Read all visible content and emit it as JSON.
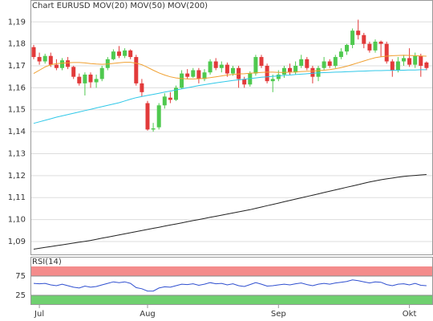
{
  "chart_data": [
    {
      "type": "candlestick",
      "title": "Chart EURUSD",
      "title_color": "#e04040",
      "categories": [
        null,
        "Jul",
        null,
        null,
        null,
        null,
        null,
        null,
        null,
        null,
        null,
        null,
        null,
        null,
        null,
        null,
        null,
        null,
        null,
        null,
        "Aug",
        null,
        null,
        null,
        null,
        null,
        null,
        null,
        null,
        null,
        null,
        null,
        null,
        null,
        null,
        null,
        null,
        null,
        null,
        null,
        null,
        null,
        null,
        "Sep",
        null,
        null,
        null,
        null,
        null,
        null,
        null,
        null,
        null,
        null,
        null,
        null,
        null,
        null,
        null,
        null,
        null,
        null,
        null,
        null,
        null,
        null,
        "Okt",
        null,
        null,
        null
      ],
      "open": [
        1.1785,
        1.174,
        1.172,
        1.1745,
        1.1705,
        1.169,
        1.1725,
        1.1695,
        1.165,
        1.162,
        1.166,
        1.1625,
        1.164,
        1.169,
        1.173,
        1.1765,
        1.1745,
        1.177,
        1.174,
        1.162,
        1.153,
        1.141,
        1.142,
        1.152,
        1.1555,
        1.1545,
        1.16,
        1.1665,
        1.165,
        1.168,
        1.164,
        1.167,
        1.172,
        1.169,
        1.1705,
        1.1665,
        1.169,
        1.164,
        1.1615,
        1.1665,
        1.174,
        1.17,
        1.163,
        1.164,
        1.166,
        1.169,
        1.167,
        1.17,
        1.173,
        1.169,
        1.165,
        1.169,
        1.172,
        1.17,
        1.174,
        1.1765,
        1.1795,
        1.186,
        1.184,
        1.18,
        1.177,
        1.181,
        1.18,
        1.172,
        1.168,
        1.172,
        1.1735,
        1.1705,
        1.1745,
        1.1715
      ],
      "high": [
        1.1795,
        1.176,
        1.1755,
        1.176,
        1.173,
        1.1735,
        1.174,
        1.17,
        1.1665,
        1.167,
        1.167,
        1.166,
        1.17,
        1.174,
        1.1775,
        1.179,
        1.178,
        1.1775,
        1.175,
        1.164,
        1.154,
        1.144,
        1.153,
        1.1575,
        1.158,
        1.161,
        1.168,
        1.1685,
        1.169,
        1.169,
        1.1685,
        1.173,
        1.1735,
        1.172,
        1.1715,
        1.17,
        1.17,
        1.165,
        1.1675,
        1.175,
        1.175,
        1.171,
        1.166,
        1.168,
        1.17,
        1.171,
        1.172,
        1.175,
        1.174,
        1.17,
        1.17,
        1.174,
        1.173,
        1.175,
        1.178,
        1.18,
        1.187,
        1.191,
        1.185,
        1.181,
        1.182,
        1.1815,
        1.181,
        1.173,
        1.174,
        1.175,
        1.178,
        1.176,
        1.1755,
        1.172
      ],
      "low": [
        1.173,
        1.1705,
        1.171,
        1.1695,
        1.168,
        1.168,
        1.1685,
        1.164,
        1.161,
        1.1565,
        1.16,
        1.16,
        1.163,
        1.168,
        1.1725,
        1.1735,
        1.1735,
        1.173,
        1.161,
        1.156,
        1.1405,
        1.14,
        1.141,
        1.1505,
        1.153,
        1.154,
        1.1595,
        1.164,
        1.1645,
        1.162,
        1.163,
        1.166,
        1.168,
        1.167,
        1.165,
        1.1655,
        1.16,
        1.16,
        1.1605,
        1.1655,
        1.169,
        1.162,
        1.158,
        1.163,
        1.1645,
        1.166,
        1.166,
        1.169,
        1.168,
        1.162,
        1.163,
        1.168,
        1.169,
        1.169,
        1.173,
        1.175,
        1.178,
        1.182,
        1.178,
        1.176,
        1.176,
        1.174,
        1.171,
        1.165,
        1.167,
        1.17,
        1.1695,
        1.169,
        1.165,
        1.168
      ],
      "close": [
        1.174,
        1.172,
        1.1745,
        1.1705,
        1.169,
        1.1725,
        1.1695,
        1.165,
        1.162,
        1.166,
        1.1625,
        1.164,
        1.169,
        1.173,
        1.1765,
        1.1745,
        1.177,
        1.174,
        1.162,
        1.158,
        1.141,
        1.1415,
        1.152,
        1.156,
        1.1545,
        1.16,
        1.1665,
        1.165,
        1.168,
        1.164,
        1.167,
        1.172,
        1.169,
        1.1705,
        1.1665,
        1.169,
        1.164,
        1.1615,
        1.1665,
        1.174,
        1.17,
        1.163,
        1.164,
        1.166,
        1.169,
        1.167,
        1.17,
        1.173,
        1.169,
        1.165,
        1.169,
        1.172,
        1.17,
        1.174,
        1.1765,
        1.1795,
        1.186,
        1.184,
        1.18,
        1.177,
        1.181,
        1.18,
        1.172,
        1.168,
        1.172,
        1.1735,
        1.1705,
        1.1745,
        1.17,
        1.169
      ],
      "up_color": "#4fc94f",
      "down_color": "#e23a3a",
      "series": [
        {
          "name": "MOV(20)",
          "color": "#f0a030",
          "values": [
            1.1665,
            1.168,
            1.1695,
            1.1705,
            1.171,
            1.1712,
            1.1714,
            1.1715,
            1.1715,
            1.1713,
            1.171,
            1.1708,
            1.1707,
            1.1708,
            1.1711,
            1.1714,
            1.1716,
            1.1716,
            1.1712,
            1.1705,
            1.1693,
            1.168,
            1.1668,
            1.1658,
            1.165,
            1.1645,
            1.1642,
            1.164,
            1.164,
            1.1641,
            1.1643,
            1.1646,
            1.165,
            1.1654,
            1.1658,
            1.1661,
            1.1663,
            1.1664,
            1.1666,
            1.1668,
            1.167,
            1.1671,
            1.1671,
            1.167,
            1.167,
            1.1671,
            1.1672,
            1.1674,
            1.1675,
            1.1676,
            1.1678,
            1.168,
            1.1683,
            1.1687,
            1.1692,
            1.1698,
            1.1706,
            1.1714,
            1.1722,
            1.173,
            1.1737,
            1.1741,
            1.1744,
            1.1746,
            1.1747,
            1.1748,
            1.1747,
            1.1746,
            1.1745,
            1.1744
          ]
        },
        {
          "name": "MOV(50)",
          "color": "#30c8e8",
          "values": [
            1.1438,
            1.1445,
            1.1452,
            1.1459,
            1.1466,
            1.1472,
            1.1478,
            1.1484,
            1.149,
            1.1496,
            1.1502,
            1.1508,
            1.1514,
            1.152,
            1.1526,
            1.1532,
            1.154,
            1.1548,
            1.1555,
            1.156,
            1.1565,
            1.157,
            1.1575,
            1.158,
            1.1585,
            1.159,
            1.1595,
            1.16,
            1.1605,
            1.161,
            1.1614,
            1.1618,
            1.1622,
            1.1626,
            1.163,
            1.1633,
            1.1636,
            1.1639,
            1.1642,
            1.1645,
            1.1648,
            1.165,
            1.1652,
            1.1654,
            1.1656,
            1.1658,
            1.166,
            1.1662,
            1.1664,
            1.1666,
            1.1668,
            1.1669,
            1.167,
            1.1671,
            1.1672,
            1.1673,
            1.1674,
            1.1675,
            1.1676,
            1.1677,
            1.1678,
            1.1678,
            1.1679,
            1.1679,
            1.168,
            1.168,
            1.1681,
            1.1681,
            1.1682,
            1.1682
          ]
        },
        {
          "name": "MOV(200)",
          "color": "#222222",
          "values": [
            1.0865,
            1.0869,
            1.0873,
            1.0877,
            1.0881,
            1.0885,
            1.0889,
            1.0893,
            1.0897,
            1.0901,
            1.0905,
            1.091,
            1.0915,
            1.092,
            1.0925,
            1.093,
            1.0935,
            1.094,
            1.0945,
            1.095,
            1.0955,
            1.096,
            1.0965,
            1.097,
            1.0975,
            1.098,
            1.0985,
            1.099,
            1.0995,
            1.1,
            1.1005,
            1.101,
            1.1015,
            1.102,
            1.1025,
            1.103,
            1.1035,
            1.104,
            1.1045,
            1.1051,
            1.1057,
            1.1063,
            1.1069,
            1.1075,
            1.1081,
            1.1087,
            1.1093,
            1.1099,
            1.1105,
            1.1111,
            1.1117,
            1.1123,
            1.1129,
            1.1135,
            1.1141,
            1.1147,
            1.1153,
            1.1159,
            1.1165,
            1.1171,
            1.1176,
            1.1181,
            1.1185,
            1.1189,
            1.1193,
            1.1196,
            1.1199,
            1.1201,
            1.1203,
            1.1205
          ]
        }
      ],
      "ylim": [
        1.0845,
        1.1985
      ],
      "yticks": [
        {
          "value": 1.09,
          "label": "1,09"
        },
        {
          "value": 1.1,
          "label": "1,10"
        },
        {
          "value": 1.11,
          "label": "1,11"
        },
        {
          "value": 1.12,
          "label": "1,12"
        },
        {
          "value": 1.13,
          "label": "1,13"
        },
        {
          "value": 1.14,
          "label": "1,14"
        },
        {
          "value": 1.15,
          "label": "1,15"
        },
        {
          "value": 1.16,
          "label": "1,16"
        },
        {
          "value": 1.17,
          "label": "1,17"
        },
        {
          "value": 1.18,
          "label": "1,18"
        },
        {
          "value": 1.19,
          "label": "1,19"
        }
      ],
      "grid": true
    },
    {
      "type": "line",
      "title": "RSI(14)",
      "color": "#3050d0",
      "values": [
        56,
        55,
        56,
        52,
        50,
        54,
        50,
        46,
        44,
        49,
        46,
        48,
        52,
        56,
        60,
        58,
        60,
        56,
        45,
        42,
        36,
        36,
        44,
        47,
        46,
        50,
        54,
        53,
        55,
        51,
        54,
        58,
        55,
        56,
        52,
        55,
        50,
        48,
        53,
        58,
        54,
        49,
        50,
        52,
        54,
        52,
        55,
        57,
        53,
        50,
        54,
        56,
        54,
        57,
        59,
        61,
        65,
        63,
        60,
        57,
        60,
        59,
        53,
        50,
        54,
        55,
        52,
        56,
        51,
        50
      ],
      "ylim": [
        0,
        100
      ],
      "yticks": [
        25,
        75
      ]
    }
  ]
}
